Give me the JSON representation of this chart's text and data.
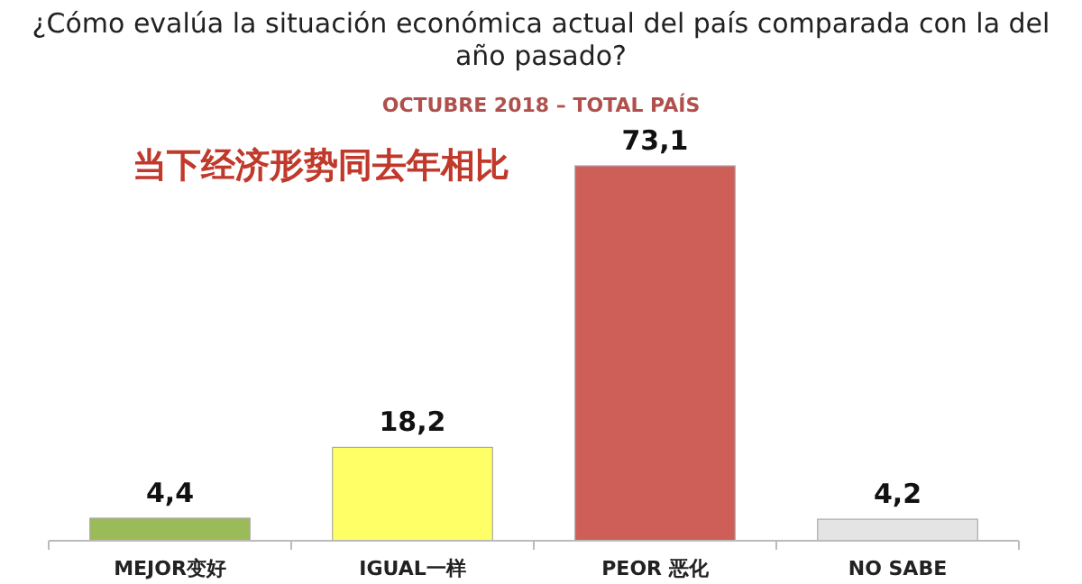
{
  "chart_data": {
    "type": "bar",
    "title": "¿Cómo evalúa la situación económica actual del país comparada con la del año pasado?",
    "subtitle": "OCTUBRE 2018 – TOTAL PAÍS",
    "annotations": [
      "当下经济形势同去年相比"
    ],
    "categories": [
      "MEJOR变好",
      "IGUAL一样",
      "PEOR 恶化",
      "NO SABE"
    ],
    "values": [
      4.4,
      18.2,
      73.1,
      4.2
    ],
    "value_labels": [
      "4,4",
      "18,2",
      "73,1",
      "4,2"
    ],
    "colors": [
      "#9bbb59",
      "#ffff66",
      "#cd5f58",
      "#e4e4e4"
    ]
  }
}
